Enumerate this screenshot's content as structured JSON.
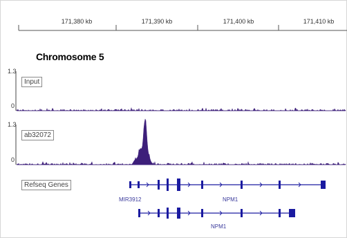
{
  "ruler": {
    "ticks": [
      "171,380 kb",
      "171,390 kb",
      "171,400 kb",
      "171,410 kb"
    ]
  },
  "chromosome_title": "Chromosome 5",
  "tracks": [
    {
      "label": "Input",
      "scale_max": "1.3",
      "scale_min": "0"
    },
    {
      "label": "ab32072",
      "scale_max": "1.3",
      "scale_min": "0"
    },
    {
      "label": "Refseq Genes"
    }
  ],
  "genes": {
    "row1_left": "MIR3912",
    "row1_center": "NPM1",
    "row2_center": "NPM1"
  },
  "colors": {
    "signal": "#3d1f7a",
    "gene": "#1a1aa0",
    "axis": "#333333"
  }
}
